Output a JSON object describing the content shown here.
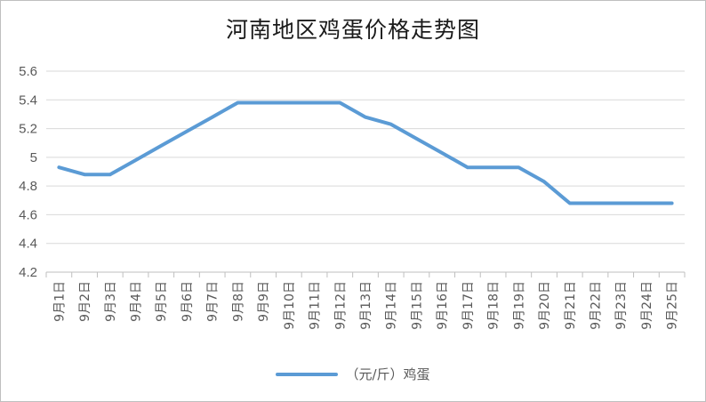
{
  "chart_data": {
    "type": "line",
    "title": "河南地区鸡蛋价格走势图",
    "categories": [
      "9月1日",
      "9月2日",
      "9月3日",
      "9月4日",
      "9月5日",
      "9月6日",
      "9月7日",
      "9月8日",
      "9月9日",
      "9月10日",
      "9月11日",
      "9月12日",
      "9月13日",
      "9月14日",
      "9月15日",
      "9月16日",
      "9月17日",
      "9月18日",
      "9月19日",
      "9月20日",
      "9月21日",
      "9月22日",
      "9月23日",
      "9月24日",
      "9月25日"
    ],
    "series": [
      {
        "name": "（元/斤）鸡蛋",
        "values": [
          4.93,
          4.88,
          4.88,
          null,
          null,
          null,
          null,
          5.38,
          5.38,
          5.38,
          5.38,
          5.38,
          5.28,
          5.23,
          null,
          null,
          4.93,
          4.93,
          4.93,
          4.83,
          4.68,
          4.68,
          4.68,
          4.68,
          4.68
        ],
        "color": "#5b9bd5"
      }
    ],
    "ylim": [
      4.2,
      5.6
    ],
    "yticks": [
      "4.2",
      "4.4",
      "4.6",
      "4.8",
      "5",
      "5.2",
      "5.4",
      "5.6"
    ],
    "grid": true,
    "legend": "bottom"
  }
}
